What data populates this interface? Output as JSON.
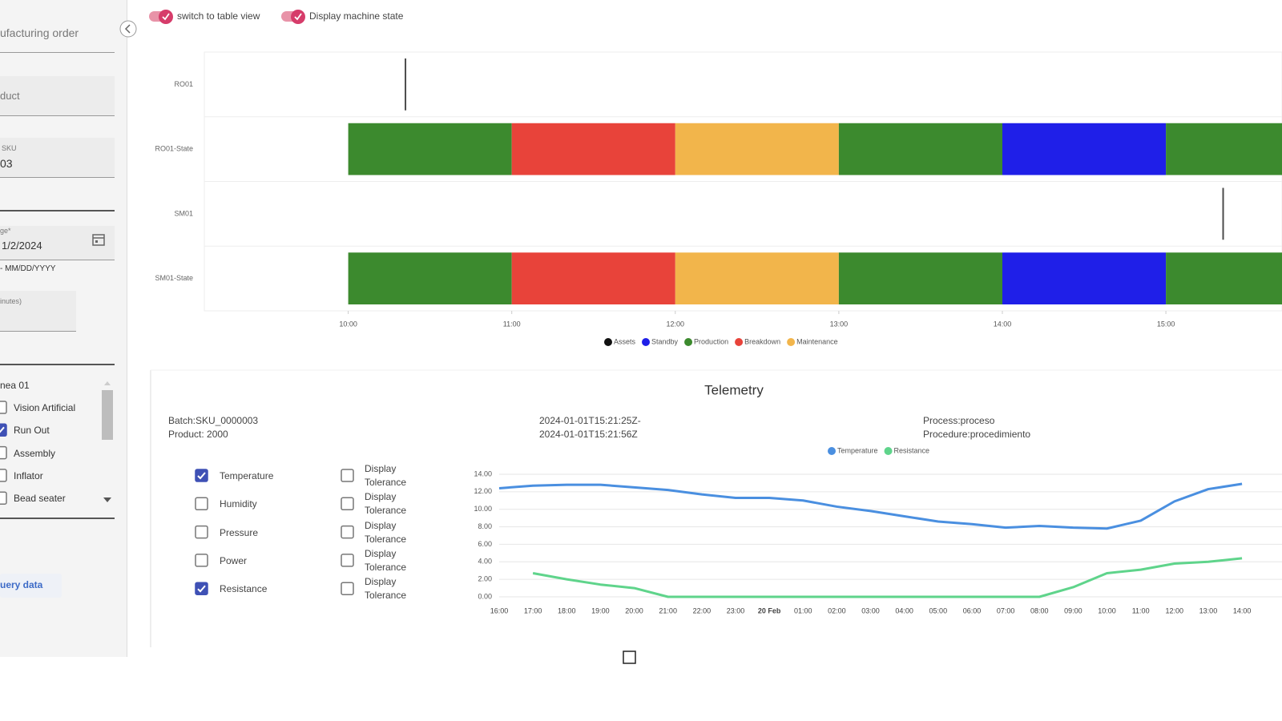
{
  "toolbar": {
    "toggles": [
      {
        "label": "switch to table view",
        "on": true
      },
      {
        "label": "Display machine state",
        "on": true
      }
    ]
  },
  "sidebar": {
    "order": "ufacturing order",
    "product": "duct",
    "sku_label": "SKU",
    "sku_value": "03",
    "date_label": "ge*",
    "date_value": "1/2/2024",
    "date_hint": "- MM/DD/YYYY",
    "minutes_label": "inutes)",
    "line": "nea 01",
    "machines": [
      {
        "label": "Vision Artificial",
        "checked": false
      },
      {
        "label": "Run Out",
        "checked": true
      },
      {
        "label": "Assembly",
        "checked": false
      },
      {
        "label": "Inflator",
        "checked": false
      },
      {
        "label": "Bead seater",
        "checked": false
      }
    ],
    "button": "uery data"
  },
  "chart_data": [
    {
      "type": "timeline",
      "rows": [
        "RO01",
        "RO01-State",
        "SM01",
        "SM01-State"
      ],
      "legend": [
        {
          "name": "Assets",
          "color": "#111111"
        },
        {
          "name": "Standby",
          "color": "#1f1fe8"
        },
        {
          "name": "Production",
          "color": "#3c8a2e"
        },
        {
          "name": "Breakdown",
          "color": "#e8433a"
        },
        {
          "name": "Maintenance",
          "color": "#f2b54b"
        }
      ],
      "events": [
        {
          "row": "RO01",
          "x": 10.35,
          "series": "Assets"
        },
        {
          "row": "SM01",
          "x": 15.35,
          "series": "Assets"
        }
      ],
      "segments": [
        {
          "row": "RO01-State",
          "start": 10,
          "end": 11,
          "state": "Production"
        },
        {
          "row": "RO01-State",
          "start": 11,
          "end": 12,
          "state": "Breakdown"
        },
        {
          "row": "RO01-State",
          "start": 12,
          "end": 13,
          "state": "Maintenance"
        },
        {
          "row": "RO01-State",
          "start": 13,
          "end": 14,
          "state": "Production"
        },
        {
          "row": "RO01-State",
          "start": 14,
          "end": 15,
          "state": "Standby"
        },
        {
          "row": "RO01-State",
          "start": 15,
          "end": 15.71,
          "state": "Production"
        },
        {
          "row": "SM01-State",
          "start": 10,
          "end": 11,
          "state": "Production"
        },
        {
          "row": "SM01-State",
          "start": 11,
          "end": 12,
          "state": "Breakdown"
        },
        {
          "row": "SM01-State",
          "start": 12,
          "end": 13,
          "state": "Maintenance"
        },
        {
          "row": "SM01-State",
          "start": 13,
          "end": 14,
          "state": "Production"
        },
        {
          "row": "SM01-State",
          "start": 14,
          "end": 15,
          "state": "Standby"
        },
        {
          "row": "SM01-State",
          "start": 15,
          "end": 15.71,
          "state": "Production"
        }
      ],
      "xlim": [
        9.12,
        15.71
      ],
      "xticks": [
        {
          "value": 10,
          "label": "10:00"
        },
        {
          "value": 11,
          "label": "11:00"
        },
        {
          "value": 12,
          "label": "12:00"
        },
        {
          "value": 13,
          "label": "13:00"
        },
        {
          "value": 14,
          "label": "14:00"
        },
        {
          "value": 15,
          "label": "15:00"
        }
      ]
    },
    {
      "type": "line",
      "title": "Telemetry",
      "categories": [
        "16:00",
        "17:00",
        "18:00",
        "19:00",
        "20:00",
        "21:00",
        "22:00",
        "23:00",
        "20 Feb",
        "01:00",
        "02:00",
        "03:00",
        "04:00",
        "05:00",
        "06:00",
        "07:00",
        "08:00",
        "09:00",
        "10:00",
        "11:00",
        "12:00",
        "13:00",
        "14:00"
      ],
      "series": [
        {
          "name": "Temperature",
          "color": "#4a8fe0",
          "values": [
            12.4,
            12.7,
            12.8,
            12.8,
            12.5,
            12.2,
            11.7,
            11.3,
            11.3,
            11.0,
            10.3,
            9.8,
            9.2,
            8.6,
            8.3,
            7.9,
            8.1,
            7.9,
            7.8,
            8.7,
            10.9,
            12.3,
            12.9
          ]
        },
        {
          "name": "Resistance",
          "color": "#5fd48b",
          "values": [
            null,
            2.7,
            2.0,
            1.4,
            1.0,
            0,
            0,
            0,
            0,
            0,
            0,
            0,
            0,
            0,
            0,
            0,
            0,
            1.1,
            2.7,
            3.1,
            3.8,
            4.0,
            4.4
          ]
        }
      ],
      "ylim": [
        0,
        14
      ],
      "yticks": [
        {
          "value": 0,
          "label": "0.00"
        },
        {
          "value": 2,
          "label": "2.00"
        },
        {
          "value": 4,
          "label": "4.00"
        },
        {
          "value": 6,
          "label": "6.00"
        },
        {
          "value": 8,
          "label": "8.00"
        },
        {
          "value": 10,
          "label": "10.00"
        },
        {
          "value": 12,
          "label": "12.00"
        },
        {
          "value": 14,
          "label": "14.00"
        }
      ],
      "grid": true
    }
  ],
  "telemetry": {
    "batch": "Batch:SKU_0000003",
    "product": "Product: 2000",
    "range_start": "2024-01-01T15:21:25Z-",
    "range_end": "2024-01-01T15:21:56Z",
    "process": "Process:proceso",
    "procedure": "Procedure:procedimiento",
    "variables": [
      {
        "label": "Temperature",
        "checked": true,
        "tolerance": "Display Tolerance",
        "tolerance_checked": false
      },
      {
        "label": "Humidity",
        "checked": false,
        "tolerance": "Display Tolerance",
        "tolerance_checked": false
      },
      {
        "label": "Pressure",
        "checked": false,
        "tolerance": "Display Tolerance",
        "tolerance_checked": false
      },
      {
        "label": "Power",
        "checked": false,
        "tolerance": "Display Tolerance",
        "tolerance_checked": false
      },
      {
        "label": "Resistance",
        "checked": true,
        "tolerance": "Display Tolerance",
        "tolerance_checked": false
      }
    ]
  }
}
